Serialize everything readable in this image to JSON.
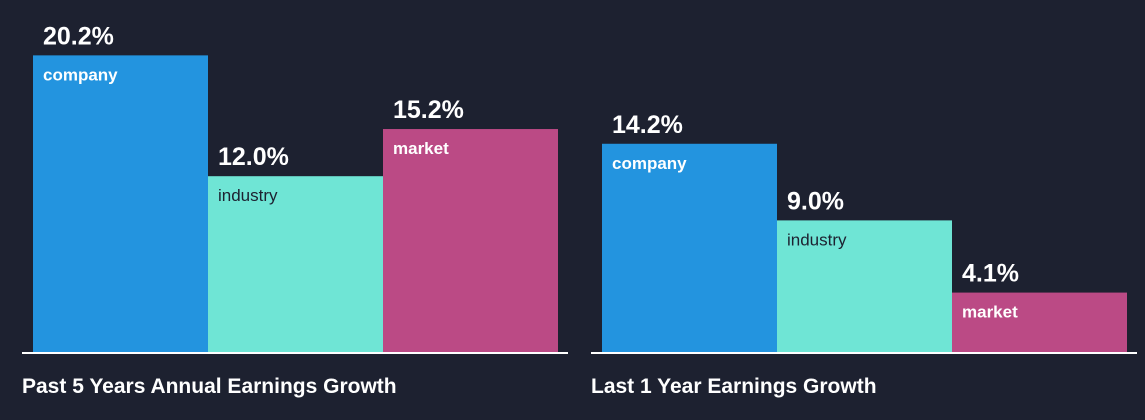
{
  "chart_data": [
    {
      "type": "bar",
      "title": "Past 5 Years Annual Earnings Growth",
      "categories": [
        "company",
        "industry",
        "market"
      ],
      "values": [
        20.2,
        12.0,
        15.2
      ],
      "value_labels": [
        "20.2%",
        "12.0%",
        "15.2%"
      ],
      "colors": [
        "#2394df",
        "#6fe5d5",
        "#bb4a85"
      ],
      "ylim": [
        0,
        22.6
      ]
    },
    {
      "type": "bar",
      "title": "Last 1 Year Earnings Growth",
      "categories": [
        "company",
        "industry",
        "market"
      ],
      "values": [
        14.2,
        9.0,
        4.1
      ],
      "value_labels": [
        "14.2%",
        "9.0%",
        "4.1%"
      ],
      "colors": [
        "#2394df",
        "#6fe5d5",
        "#bb4a85"
      ],
      "ylim": [
        0,
        22.6
      ]
    }
  ]
}
